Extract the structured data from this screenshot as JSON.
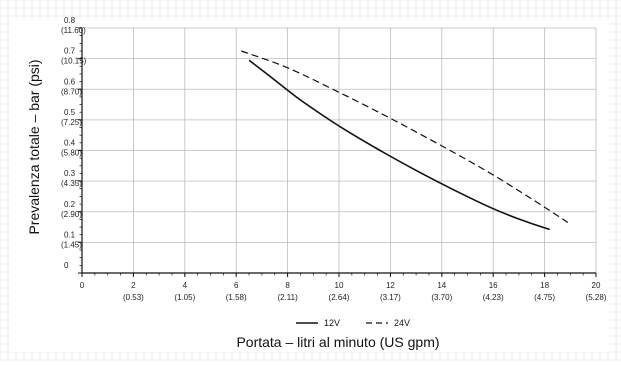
{
  "chart_data": {
    "type": "line",
    "title": "",
    "xlabel": "Portata – litri al minuto (US gpm)",
    "ylabel": "Prevalenza totale – bar (psi)",
    "xlim": [
      0,
      20
    ],
    "ylim": [
      0,
      0.8
    ],
    "grid": true,
    "legend_position": "bottom-center",
    "x_ticks": [
      {
        "value": 0,
        "label": "0",
        "sub": ""
      },
      {
        "value": 2,
        "label": "2",
        "sub": "(0.53)"
      },
      {
        "value": 4,
        "label": "4",
        "sub": "(1.05)"
      },
      {
        "value": 6,
        "label": "6",
        "sub": "(1.58)"
      },
      {
        "value": 8,
        "label": "8",
        "sub": "(2.11)"
      },
      {
        "value": 10,
        "label": "10",
        "sub": "(2.64)"
      },
      {
        "value": 12,
        "label": "12",
        "sub": "(3.17)"
      },
      {
        "value": 14,
        "label": "14",
        "sub": "(3.70)"
      },
      {
        "value": 16,
        "label": "16",
        "sub": "(4.23)"
      },
      {
        "value": 18,
        "label": "18",
        "sub": "(4.75)"
      },
      {
        "value": 20,
        "label": "20",
        "sub": "(5.28)"
      }
    ],
    "y_ticks": [
      {
        "value": 0,
        "label": "0",
        "sub": ""
      },
      {
        "value": 0.1,
        "label": "0.1",
        "sub": "(1.45)"
      },
      {
        "value": 0.2,
        "label": "0.2",
        "sub": "(2.90)"
      },
      {
        "value": 0.3,
        "label": "0.3",
        "sub": "(4.35)"
      },
      {
        "value": 0.4,
        "label": "0.4",
        "sub": "(5.80)"
      },
      {
        "value": 0.5,
        "label": "0.5",
        "sub": "(7.25)"
      },
      {
        "value": 0.6,
        "label": "0.6",
        "sub": "(8.70)"
      },
      {
        "value": 0.7,
        "label": "0.7",
        "sub": "(10.15)"
      },
      {
        "value": 0.8,
        "label": "0.8",
        "sub": "(11.60)"
      }
    ],
    "series": [
      {
        "name": "12V",
        "style": "solid",
        "color": "#111111",
        "x": [
          6.5,
          7.5,
          8.5,
          10.0,
          11.5,
          13.0,
          14.5,
          16.0,
          17.2,
          18.2
        ],
        "y": [
          0.695,
          0.63,
          0.565,
          0.48,
          0.405,
          0.335,
          0.27,
          0.21,
          0.17,
          0.142
        ]
      },
      {
        "name": "24V",
        "style": "dashed",
        "color": "#111111",
        "x": [
          6.2,
          8.0,
          10.0,
          12.0,
          14.0,
          16.0,
          18.0,
          18.9
        ],
        "y": [
          0.725,
          0.67,
          0.59,
          0.505,
          0.415,
          0.32,
          0.215,
          0.165
        ]
      }
    ]
  }
}
